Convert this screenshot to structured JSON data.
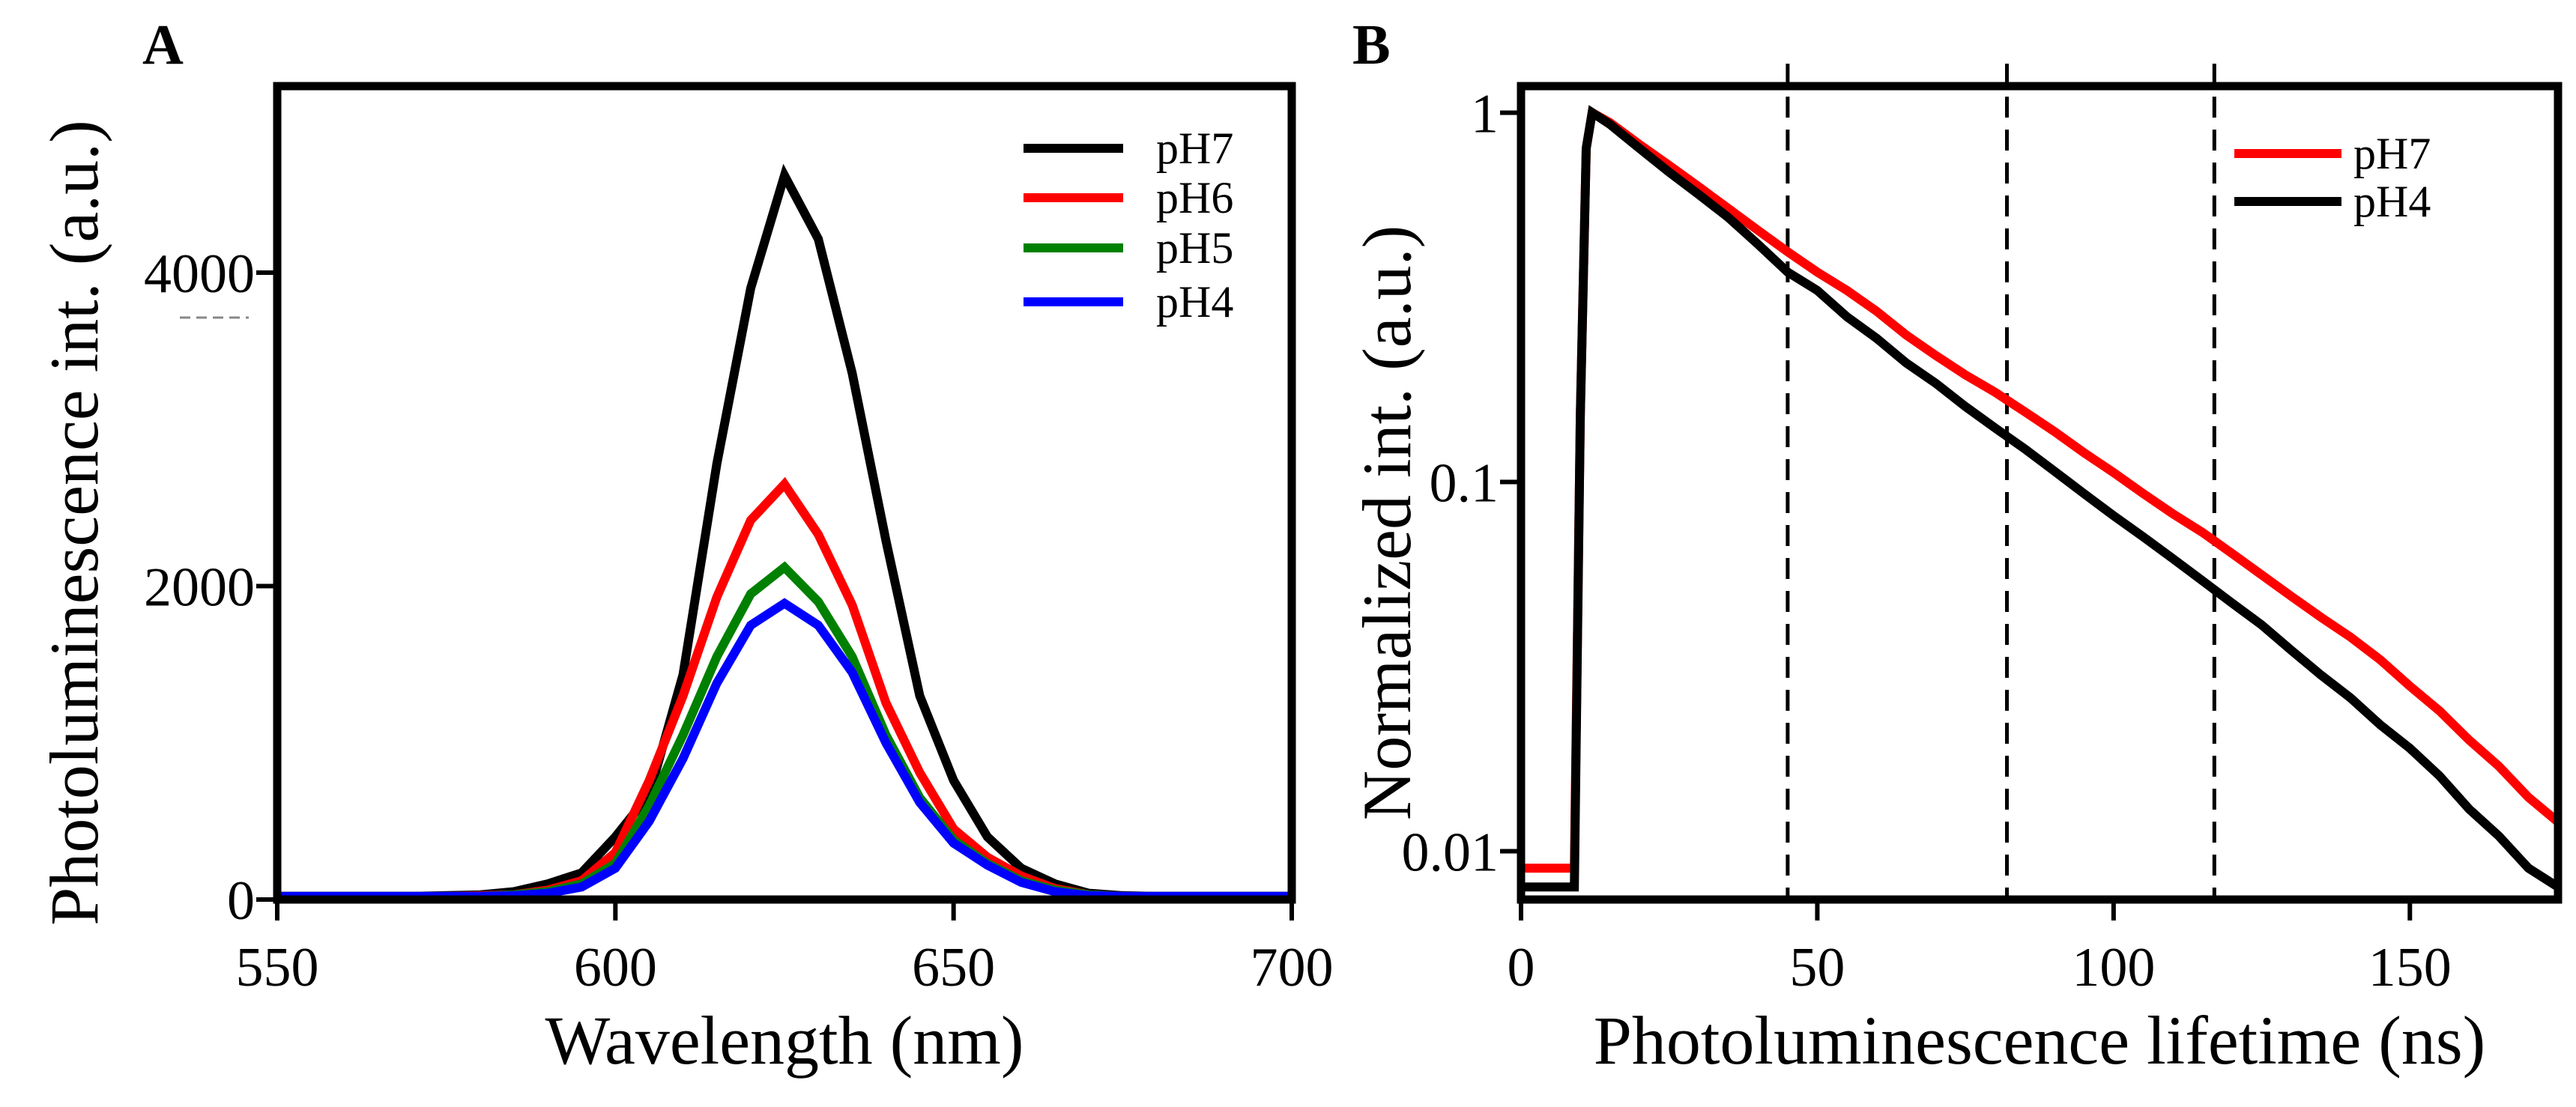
{
  "chart_data": [
    {
      "panel": "A",
      "type": "line",
      "xlabel": "Wavelength (nm)",
      "ylabel": "Photoluminescence  int. (a.u.)",
      "xlim": [
        550,
        700
      ],
      "ylim": [
        0,
        5190
      ],
      "xticks": [
        550,
        600,
        650,
        700
      ],
      "yticks": [
        0,
        2000,
        4000
      ],
      "legend_position": "top-right",
      "x": [
        550,
        555,
        560,
        565,
        570,
        575,
        580,
        585,
        590,
        595,
        600,
        605,
        610,
        615,
        620,
        625,
        630,
        635,
        640,
        645,
        650,
        655,
        660,
        665,
        670,
        675,
        680,
        685,
        690,
        695,
        700
      ],
      "series": [
        {
          "name": "pH7",
          "color": "#000000",
          "values": [
            20,
            20,
            20,
            20,
            20,
            25,
            30,
            50,
            100,
            170,
            400,
            670,
            1435,
            2780,
            3900,
            4620,
            4215,
            3360,
            2290,
            1300,
            760,
            400,
            200,
            100,
            40,
            25,
            20,
            20,
            20,
            20,
            20
          ]
        },
        {
          "name": "pH6",
          "color": "#ff0000",
          "values": [
            20,
            20,
            20,
            20,
            20,
            20,
            25,
            30,
            60,
            120,
            300,
            760,
            1300,
            1930,
            2420,
            2650,
            2330,
            1880,
            1255,
            810,
            450,
            270,
            150,
            70,
            30,
            20,
            20,
            20,
            20,
            20,
            20
          ]
        },
        {
          "name": "pH5",
          "color": "#008000",
          "values": [
            20,
            20,
            20,
            20,
            20,
            20,
            20,
            30,
            50,
            100,
            230,
            600,
            1050,
            1550,
            1950,
            2120,
            1900,
            1550,
            1050,
            650,
            380,
            230,
            120,
            60,
            30,
            20,
            20,
            20,
            20,
            20,
            20
          ]
        },
        {
          "name": "pH4",
          "color": "#0000ff",
          "values": [
            20,
            20,
            20,
            20,
            20,
            20,
            20,
            25,
            40,
            80,
            200,
            500,
            900,
            1380,
            1750,
            1890,
            1750,
            1450,
            1000,
            620,
            360,
            220,
            110,
            50,
            25,
            20,
            20,
            20,
            20,
            20,
            20
          ]
        }
      ]
    },
    {
      "panel": "B",
      "type": "line",
      "xlabel": "Photoluminescence  lifetime (ns)",
      "ylabel": "Normalized int. (a.u.)",
      "xlim": [
        0,
        175
      ],
      "ylim": [
        0.0074,
        1.18
      ],
      "yscale": "log",
      "xticks": [
        0,
        50,
        100,
        150
      ],
      "yticks": [
        0.01,
        0.1,
        1
      ],
      "ytick_labels": [
        "0.01",
        "0.1",
        "1"
      ],
      "vlines_dashed": [
        45,
        82,
        117
      ],
      "legend_position": "top-right",
      "x": [
        0,
        5,
        9,
        10,
        11,
        12,
        15,
        20,
        25,
        30,
        35,
        40,
        45,
        50,
        55,
        60,
        65,
        70,
        75,
        80,
        85,
        90,
        95,
        100,
        105,
        110,
        115,
        120,
        125,
        130,
        135,
        140,
        145,
        150,
        155,
        160,
        165,
        170,
        175
      ],
      "series": [
        {
          "name": "pH7",
          "color": "#ff0000",
          "values": [
            0.009,
            0.009,
            0.009,
            0.15,
            0.8,
            1,
            0.94,
            0.82,
            0.72,
            0.63,
            0.55,
            0.48,
            0.42,
            0.37,
            0.33,
            0.29,
            0.25,
            0.22,
            0.195,
            0.175,
            0.155,
            0.137,
            0.12,
            0.106,
            0.093,
            0.082,
            0.073,
            0.064,
            0.056,
            0.049,
            0.043,
            0.038,
            0.033,
            0.028,
            0.024,
            0.02,
            0.017,
            0.014,
            0.012
          ]
        },
        {
          "name": "pH4",
          "color": "#000000",
          "values": [
            0.008,
            0.008,
            0.008,
            0.15,
            0.8,
            1,
            0.93,
            0.8,
            0.69,
            0.6,
            0.52,
            0.44,
            0.37,
            0.33,
            0.28,
            0.245,
            0.21,
            0.185,
            0.16,
            0.14,
            0.123,
            0.107,
            0.093,
            0.081,
            0.071,
            0.062,
            0.054,
            0.047,
            0.041,
            0.035,
            0.03,
            0.026,
            0.022,
            0.019,
            0.016,
            0.013,
            0.011,
            0.009,
            0.008
          ]
        }
      ]
    }
  ]
}
